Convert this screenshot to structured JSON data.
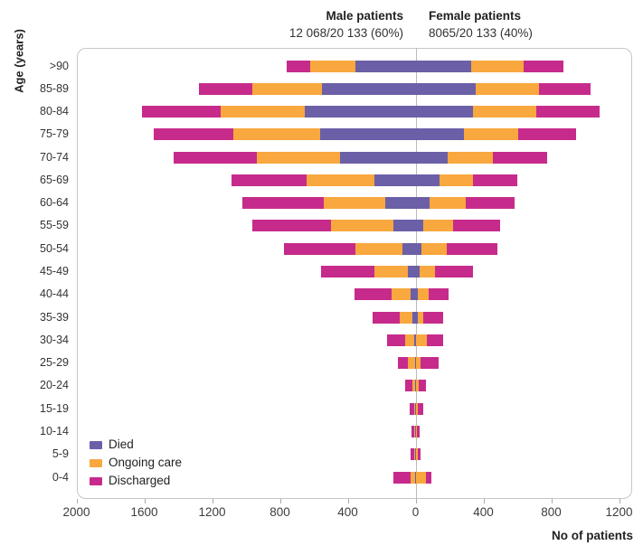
{
  "header": {
    "male_label": "Male patients",
    "male_stat": "12 068/20 133 (60%)",
    "female_label": "Female patients",
    "female_stat": "8065/20 133 (40%)"
  },
  "colors": {
    "died": "#6b5fa8",
    "ongoing": "#f8a83e",
    "discharged": "#c62b8c",
    "axis_border": "#c6c6c6",
    "zero_line": "#b9b9b9"
  },
  "legend": [
    {
      "key": "died",
      "label": "Died"
    },
    {
      "key": "ongoing",
      "label": "Ongoing care"
    },
    {
      "key": "discharged",
      "label": "Discharged"
    }
  ],
  "chart_data": {
    "type": "bar",
    "variant": "diverging-stacked-population-pyramid",
    "title": "",
    "xlabel": "No of patients",
    "ylabel": "Age (years)",
    "x_range": [
      -2000,
      1200
    ],
    "x_ticks": [
      {
        "value": -2000,
        "label": "2000"
      },
      {
        "value": -1600,
        "label": "1600"
      },
      {
        "value": -1200,
        "label": "1200"
      },
      {
        "value": -800,
        "label": "800"
      },
      {
        "value": -400,
        "label": "400"
      },
      {
        "value": 0,
        "label": "0"
      },
      {
        "value": 400,
        "label": "400"
      },
      {
        "value": 800,
        "label": "800"
      },
      {
        "value": 1200,
        "label": "1200"
      }
    ],
    "categories": [
      ">90",
      "85-89",
      "80-84",
      "75-79",
      "70-74",
      "65-69",
      "60-64",
      "55-59",
      "50-54",
      "45-49",
      "40-44",
      "35-39",
      "30-34",
      "25-29",
      "20-24",
      "15-19",
      "10-14",
      "5-9",
      "0-4"
    ],
    "segment_order_from_zero": [
      "died",
      "ongoing",
      "discharged"
    ],
    "series": [
      {
        "name": "Male died",
        "side": "left",
        "key": "died",
        "values": [
          357,
          553,
          651,
          565,
          446,
          242,
          180,
          130,
          75,
          48,
          30,
          21,
          6,
          4,
          2,
          2,
          1,
          1,
          2
        ]
      },
      {
        "name": "Male ongoing care",
        "side": "left",
        "key": "ongoing",
        "values": [
          267,
          412,
          501,
          512,
          489,
          400,
          364,
          370,
          281,
          196,
          110,
          75,
          57,
          39,
          15,
          8,
          5,
          5,
          30
        ]
      },
      {
        "name": "Male discharged",
        "side": "left",
        "key": "discharged",
        "values": [
          137,
          311,
          464,
          466,
          492,
          444,
          480,
          465,
          418,
          311,
          219,
          156,
          103,
          62,
          45,
          25,
          20,
          25,
          98
        ]
      },
      {
        "name": "Female died",
        "side": "right",
        "key": "died",
        "values": [
          329,
          352,
          341,
          284,
          190,
          139,
          84,
          44,
          36,
          23,
          12,
          12,
          5,
          3,
          2,
          2,
          1,
          1,
          2
        ]
      },
      {
        "name": "Female ongoing care",
        "side": "right",
        "key": "ongoing",
        "values": [
          306,
          377,
          370,
          320,
          268,
          199,
          210,
          178,
          148,
          89,
          64,
          32,
          59,
          27,
          18,
          12,
          6,
          12,
          59
        ]
      },
      {
        "name": "Female discharged",
        "side": "right",
        "key": "discharged",
        "values": [
          236,
          302,
          373,
          343,
          318,
          261,
          290,
          276,
          300,
          226,
          116,
          116,
          101,
          107,
          41,
          32,
          18,
          14,
          30
        ]
      }
    ],
    "grid": "zero-line-only",
    "legend_position": "inside-bottom-left"
  }
}
